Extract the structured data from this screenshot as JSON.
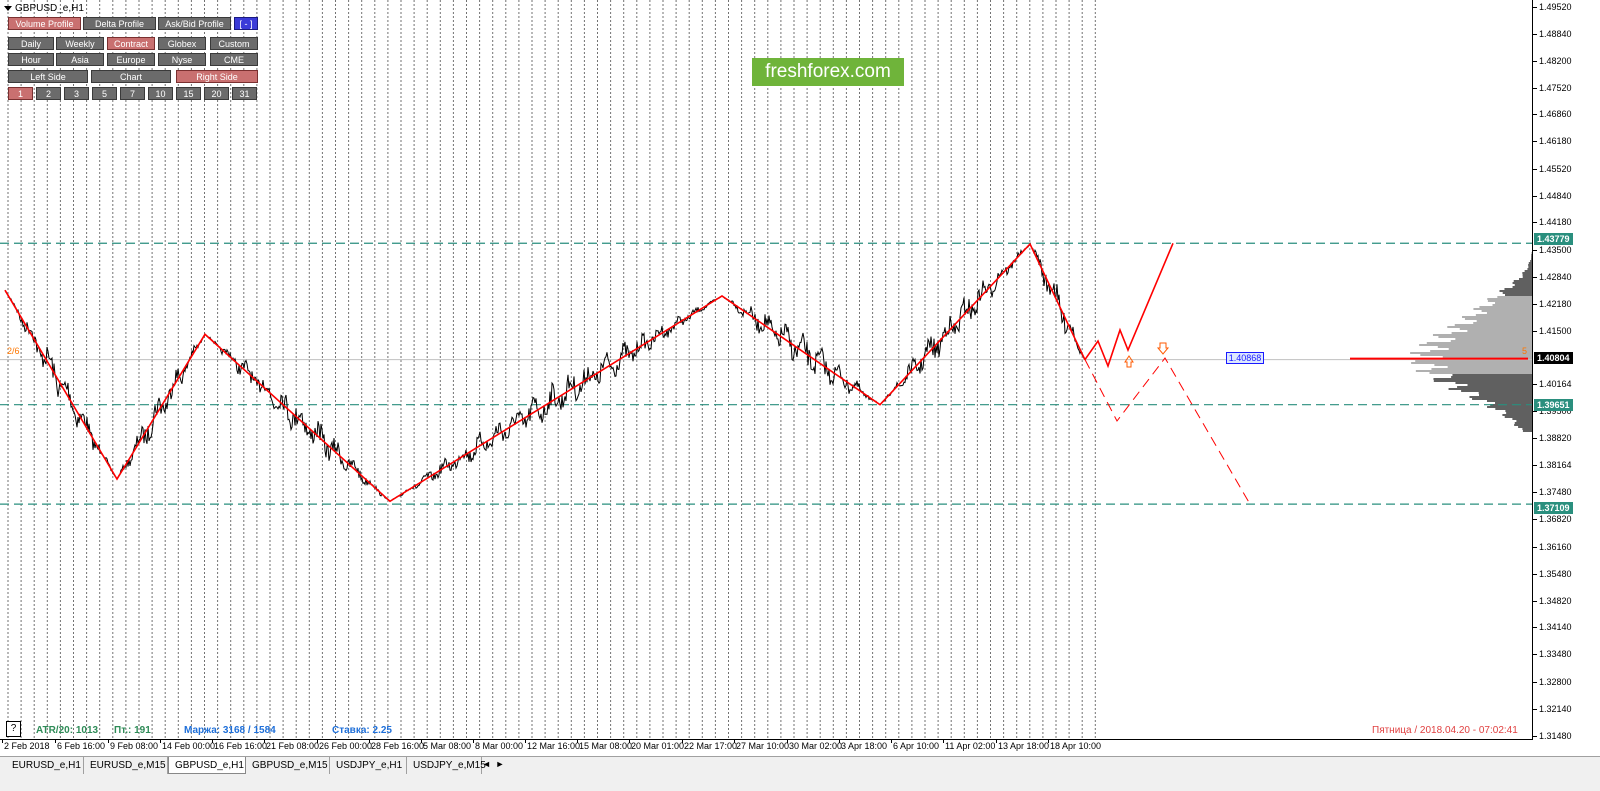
{
  "window": {
    "title": "GBPUSD_e,H1"
  },
  "toolbar": {
    "profile_row": [
      {
        "label": "Volume Profile",
        "active": true
      },
      {
        "label": "Delta Profile",
        "active": false
      },
      {
        "label": "Ask/Bid Profile",
        "active": false
      },
      {
        "label": "[ - ]",
        "active": false
      }
    ],
    "period_row": [
      {
        "label": "Daily",
        "active": false
      },
      {
        "label": "Weekly",
        "active": false
      },
      {
        "label": "Contract",
        "active": true
      },
      {
        "label": "Globex",
        "active": false
      },
      {
        "label": "Custom",
        "active": false
      }
    ],
    "session_row": [
      {
        "label": "Hour",
        "active": false
      },
      {
        "label": "Asia",
        "active": false
      },
      {
        "label": "Europe",
        "active": false
      },
      {
        "label": "Nyse",
        "active": false
      },
      {
        "label": "CME",
        "active": false
      }
    ],
    "side_row": [
      {
        "label": "Left Side",
        "active": false
      },
      {
        "label": "Chart",
        "active": false
      },
      {
        "label": "Right Side",
        "active": true
      }
    ],
    "count_row": [
      {
        "label": "1",
        "active": true
      },
      {
        "label": "2",
        "active": false
      },
      {
        "label": "3",
        "active": false
      },
      {
        "label": "5",
        "active": false
      },
      {
        "label": "7",
        "active": false
      },
      {
        "label": "10",
        "active": false
      },
      {
        "label": "15",
        "active": false
      },
      {
        "label": "20",
        "active": false
      },
      {
        "label": "31",
        "active": false
      }
    ]
  },
  "logo": {
    "text": "freshforex.com"
  },
  "price_axis": {
    "ticks": [
      "1.49520",
      "1.48840",
      "1.48200",
      "1.47520",
      "1.46860",
      "1.46180",
      "1.45520",
      "1.44840",
      "1.44180",
      "1.43500",
      "1.42840",
      "1.42180",
      "1.41500",
      "1.40164",
      "1.39500",
      "1.38820",
      "1.38164",
      "1.37480",
      "1.36820",
      "1.36160",
      "1.35480",
      "1.34820",
      "1.34140",
      "1.33480",
      "1.32800",
      "1.32140",
      "1.31480"
    ],
    "tags": [
      {
        "value": "1.43779",
        "color": "#2a8f7e"
      },
      {
        "value": "1.40804",
        "color": "#000000"
      },
      {
        "value": "1.39651",
        "color": "#2a8f7e"
      },
      {
        "value": "1.37109",
        "color": "#2a8f7e"
      }
    ]
  },
  "time_axis": {
    "labels": [
      "2 Feb 2018",
      "6 Feb 16:00",
      "9 Feb 08:00",
      "14 Feb 00:00",
      "16 Feb 16:00",
      "21 Feb 08:00",
      "26 Feb 00:00",
      "28 Feb 16:00",
      "5 Mar 08:00",
      "8 Mar 00:00",
      "12 Mar 16:00",
      "15 Mar 08:00",
      "20 Mar 01:00",
      "22 Mar 17:00",
      "27 Mar 10:00",
      "30 Mar 02:00",
      "3 Apr 18:00",
      "6 Apr 10:00",
      "11 Apr 02:00",
      "13 Apr 18:00",
      "18 Apr 10:00"
    ]
  },
  "status": {
    "help": "?",
    "atr": "ATR/20: 1013",
    "points": "Пт.: 191",
    "margin": "Маржа: 3168 / 1584",
    "rate": "Ставка: 2.25",
    "datetime": "Пятница  /  2018.04.20  -  07:02:41"
  },
  "annotations": {
    "left_marker": "2/6",
    "level_box": "1.40868",
    "right_marker": "5"
  },
  "tabs": [
    {
      "label": "EURUSD_e,H1",
      "active": false
    },
    {
      "label": "EURUSD_e,M15",
      "active": false
    },
    {
      "label": "GBPUSD_e,H1",
      "active": true
    },
    {
      "label": "GBPUSD_e,M15",
      "active": false
    },
    {
      "label": "USDJPY_e,H1",
      "active": false
    },
    {
      "label": "USDJPY_e,M15",
      "active": false
    }
  ],
  "tab_nav": {
    "prev": "◄",
    "next": "►"
  },
  "colors": {
    "zigzag": "#ff0000",
    "levels": "#2a8f7e",
    "current_price": "#ff0000",
    "profile": "#b0b0b0",
    "profile_dark": "#606060"
  },
  "chart_data": {
    "type": "line",
    "symbol": "GBPUSD_e",
    "timeframe": "H1",
    "ylim": [
      1.3118,
      1.4982
    ],
    "zigzag_points": [
      {
        "time": "2 Feb 2018",
        "price": 1.4258
      },
      {
        "time": "9 Feb 08:00",
        "price": 1.3775
      },
      {
        "time": "15 Feb",
        "price": 1.4145
      },
      {
        "time": "28 Feb 16:00",
        "price": 1.3718
      },
      {
        "time": "26 Mar",
        "price": 1.4243
      },
      {
        "time": "4 Apr",
        "price": 1.3965
      },
      {
        "time": "17 Apr",
        "price": 1.4376
      },
      {
        "time": "19 Apr",
        "price": 1.408
      }
    ],
    "horizontal_levels": [
      1.43779,
      1.39651,
      1.37109
    ],
    "current_price": 1.40804
  }
}
